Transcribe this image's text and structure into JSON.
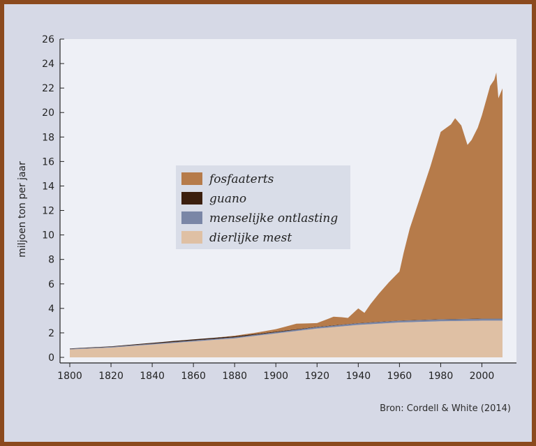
{
  "chart_data": {
    "type": "area",
    "stacked": true,
    "ylabel": "miljoen ton per jaar",
    "xlabel": "",
    "ylim": [
      0,
      26
    ],
    "xlim": [
      1800,
      2010
    ],
    "x_ticks": [
      "1800",
      "1820",
      "1840",
      "1860",
      "1880",
      "1900",
      "1920",
      "1940",
      "1960",
      "1980",
      "2000"
    ],
    "y_ticks": [
      "0",
      "2",
      "4",
      "6",
      "8",
      "10",
      "12",
      "14",
      "16",
      "18",
      "20",
      "22",
      "24",
      "26"
    ],
    "legend_position": "center-left",
    "grid": false,
    "series": [
      {
        "name": "dierlijke mest",
        "color": "#dfc0a4",
        "points": [
          [
            1800,
            0.65
          ],
          [
            1820,
            0.8
          ],
          [
            1840,
            1.05
          ],
          [
            1860,
            1.3
          ],
          [
            1880,
            1.55
          ],
          [
            1900,
            1.95
          ],
          [
            1920,
            2.35
          ],
          [
            1940,
            2.65
          ],
          [
            1960,
            2.85
          ],
          [
            1980,
            2.95
          ],
          [
            2000,
            3.0
          ],
          [
            2010,
            3.0
          ]
        ]
      },
      {
        "name": "menselijke ontlasting",
        "color": "#7a86a6",
        "points": [
          [
            1800,
            0.05
          ],
          [
            1820,
            0.06
          ],
          [
            1840,
            0.07
          ],
          [
            1860,
            0.08
          ],
          [
            1880,
            0.09
          ],
          [
            1900,
            0.1
          ],
          [
            1920,
            0.12
          ],
          [
            1940,
            0.13
          ],
          [
            1960,
            0.14
          ],
          [
            1980,
            0.15
          ],
          [
            2000,
            0.15
          ],
          [
            2010,
            0.15
          ]
        ]
      },
      {
        "name": "guano",
        "color": "#3b1f0e",
        "points": [
          [
            1800,
            0.03
          ],
          [
            1820,
            0.04
          ],
          [
            1840,
            0.06
          ],
          [
            1850,
            0.08
          ],
          [
            1860,
            0.09
          ],
          [
            1870,
            0.09
          ],
          [
            1880,
            0.08
          ],
          [
            1900,
            0.05
          ],
          [
            1920,
            0.03
          ],
          [
            1940,
            0.02
          ],
          [
            2010,
            0.02
          ]
        ]
      },
      {
        "name": "fosfaaterts",
        "color": "#b67b4a",
        "points": [
          [
            1800,
            0
          ],
          [
            1850,
            0
          ],
          [
            1870,
            0
          ],
          [
            1890,
            0.1
          ],
          [
            1900,
            0.2
          ],
          [
            1910,
            0.45
          ],
          [
            1920,
            0.3
          ],
          [
            1928,
            0.7
          ],
          [
            1932,
            0.6
          ],
          [
            1935,
            0.5
          ],
          [
            1940,
            1.2
          ],
          [
            1943,
            0.8
          ],
          [
            1946,
            1.5
          ],
          [
            1950,
            2.3
          ],
          [
            1955,
            3.2
          ],
          [
            1960,
            4.0
          ],
          [
            1962,
            5.5
          ],
          [
            1965,
            7.5
          ],
          [
            1970,
            10.0
          ],
          [
            1975,
            12.5
          ],
          [
            1980,
            15.3
          ],
          [
            1985,
            15.9
          ],
          [
            1987,
            16.4
          ],
          [
            1990,
            15.8
          ],
          [
            1993,
            14.2
          ],
          [
            1995,
            14.6
          ],
          [
            1998,
            15.6
          ],
          [
            2000,
            16.6
          ],
          [
            2002,
            17.8
          ],
          [
            2004,
            19.0
          ],
          [
            2006,
            19.5
          ],
          [
            2007,
            20.1
          ],
          [
            2008,
            18.0
          ],
          [
            2010,
            18.8
          ]
        ]
      }
    ]
  },
  "source": "Bron: Cordell & White (2014)"
}
